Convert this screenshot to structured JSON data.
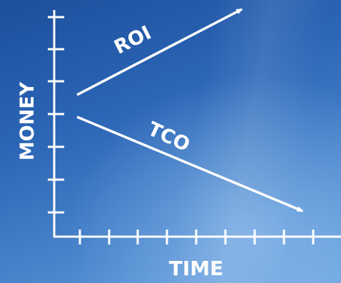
{
  "diagram": {
    "y_axis_label": "MONEY",
    "x_axis_label": "TIME",
    "arrows": [
      {
        "label": "ROI",
        "direction": "up"
      },
      {
        "label": "TCO",
        "direction": "down"
      }
    ],
    "colors": {
      "background_top": "#1c4f9c",
      "background_bottom": "#6aa3de",
      "lines": "#ffffff"
    }
  }
}
